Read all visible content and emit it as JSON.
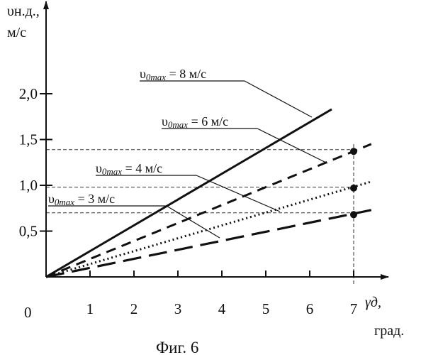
{
  "figure": {
    "caption": "Фиг. 6"
  },
  "chart_data": {
    "type": "line",
    "ylabel_line1": "υн.д.,",
    "ylabel_line2": "м/с",
    "xlabel_symbol": "γд,",
    "xlabel_unit": "град.",
    "origin_label": "0",
    "xlim": [
      0,
      7.6
    ],
    "ylim": [
      0,
      2.0
    ],
    "x_ticks": [
      1,
      2,
      3,
      4,
      5,
      6,
      7
    ],
    "x_tick_labels": [
      "1",
      "2",
      "3",
      "4",
      "5",
      "6",
      "7"
    ],
    "y_ticks": [
      0.5,
      1.0,
      1.5,
      2.0
    ],
    "y_tick_labels": [
      "0,5",
      "1,0",
      "1,5",
      "2,0"
    ],
    "grid": false,
    "series": [
      {
        "name": "υ0max = 8 м/с",
        "style": "solid",
        "x": [
          0,
          6.5
        ],
        "y": [
          0,
          1.83
        ]
      },
      {
        "name": "υ0max = 6 м/с",
        "style": "dashed",
        "x": [
          0,
          7.4
        ],
        "y": [
          0,
          1.45
        ]
      },
      {
        "name": "υ0max = 4 м/с",
        "style": "dotted",
        "x": [
          0,
          7.4
        ],
        "y": [
          0,
          1.04
        ]
      },
      {
        "name": "υ0max = 3 м/с",
        "style": "long-dashed",
        "x": [
          0,
          7.4
        ],
        "y": [
          0,
          0.73
        ]
      }
    ],
    "markers": [
      {
        "x": 7,
        "y": 1.37
      },
      {
        "x": 7,
        "y": 0.97
      },
      {
        "x": 7,
        "y": 0.68
      }
    ],
    "reference_lines": {
      "horizontal": [
        1.39,
        0.98,
        0.7
      ],
      "vertical_x": 7
    },
    "annotations": [
      {
        "prefix": "υ",
        "sub": "0max",
        "text": " = 8 м/с",
        "target_series": 0
      },
      {
        "prefix": "υ",
        "sub": "0max",
        "text": " = 6 м/с",
        "target_series": 1
      },
      {
        "prefix": "υ",
        "sub": "0max",
        "text": " = 4 м/с",
        "target_series": 2
      },
      {
        "prefix": "υ",
        "sub": "0max",
        "text": " = 3 м/с",
        "target_series": 3
      }
    ]
  }
}
